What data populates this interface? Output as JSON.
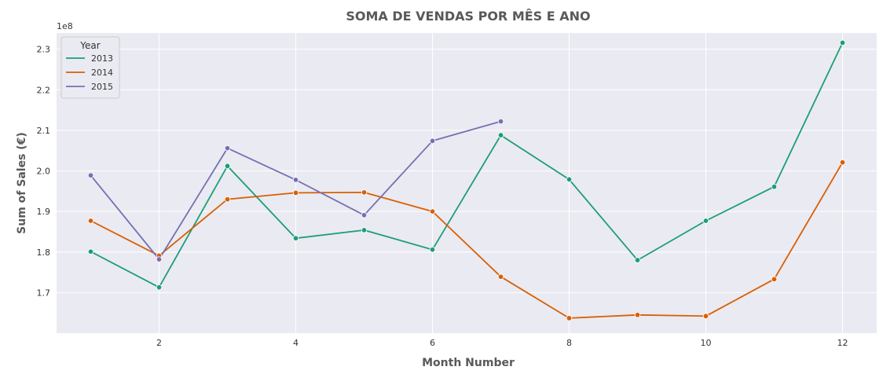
{
  "chart_data": {
    "type": "line",
    "title": "SOMA DE VENDAS POR MÊS E ANO",
    "xlabel": "Month Number",
    "ylabel": "Sum of Sales (€)",
    "y_offset_label": "1e8",
    "xlim": [
      0.5,
      12.5
    ],
    "ylim": [
      1.6,
      2.34
    ],
    "x_ticks": [
      2,
      4,
      6,
      8,
      10,
      12
    ],
    "y_ticks": [
      1.7,
      1.8,
      1.9,
      2.0,
      2.1,
      2.2,
      2.3
    ],
    "y_tick_labels": [
      "1.7",
      "1.8",
      "1.9",
      "2.0",
      "2.1",
      "2.2",
      "2.3"
    ],
    "grid": true,
    "legend": {
      "title": "Year",
      "placement": "top-left"
    },
    "series": [
      {
        "name": "2013",
        "color": "#1b9e77",
        "x": [
          1,
          2,
          3,
          4,
          5,
          6,
          7,
          8,
          9,
          10,
          11,
          12
        ],
        "values": [
          1.801,
          1.713,
          2.012,
          1.834,
          1.854,
          1.806,
          2.088,
          1.979,
          1.78,
          1.877,
          1.961,
          2.316
        ]
      },
      {
        "name": "2014",
        "color": "#d95f02",
        "x": [
          1,
          2,
          3,
          4,
          5,
          6,
          7,
          8,
          9,
          10,
          11,
          12
        ],
        "values": [
          1.877,
          1.791,
          1.93,
          1.946,
          1.947,
          1.9,
          1.739,
          1.637,
          1.645,
          1.642,
          1.733,
          2.021
        ]
      },
      {
        "name": "2015",
        "color": "#7570b3",
        "x": [
          1,
          2,
          3,
          4,
          5,
          6,
          7
        ],
        "values": [
          1.989,
          1.782,
          2.056,
          1.978,
          1.891,
          2.074,
          2.122
        ]
      }
    ]
  }
}
